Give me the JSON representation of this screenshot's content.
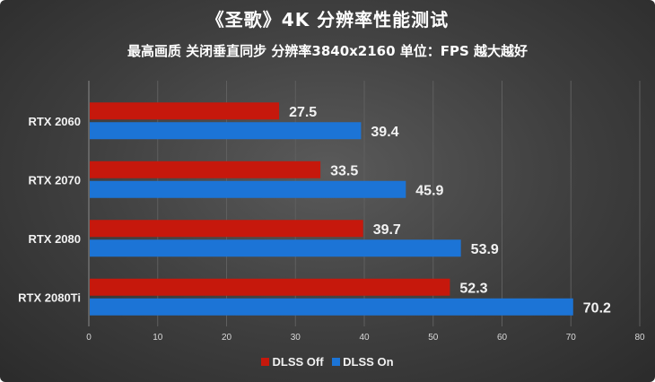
{
  "title": "《圣歌》4K 分辨率性能测试",
  "subtitle": "最高画质 关闭垂直同步 分辨率3840x2160 单位：FPS 越大越好",
  "colors": {
    "dlss_off": "#c6180c",
    "dlss_on": "#1c74d6"
  },
  "chart_data": {
    "type": "bar",
    "orientation": "horizontal",
    "categories": [
      "RTX 2060",
      "RTX 2070",
      "RTX 2080",
      "RTX 2080Ti"
    ],
    "series": [
      {
        "name": "DLSS Off",
        "values": [
          27.5,
          33.5,
          39.7,
          52.3
        ]
      },
      {
        "name": "DLSS On",
        "values": [
          39.4,
          45.9,
          53.9,
          70.2
        ]
      }
    ],
    "xlim": [
      0,
      80
    ],
    "xticks": [
      0,
      10,
      20,
      30,
      40,
      50,
      60,
      70,
      80
    ],
    "grid": true,
    "legend_position": "bottom"
  }
}
